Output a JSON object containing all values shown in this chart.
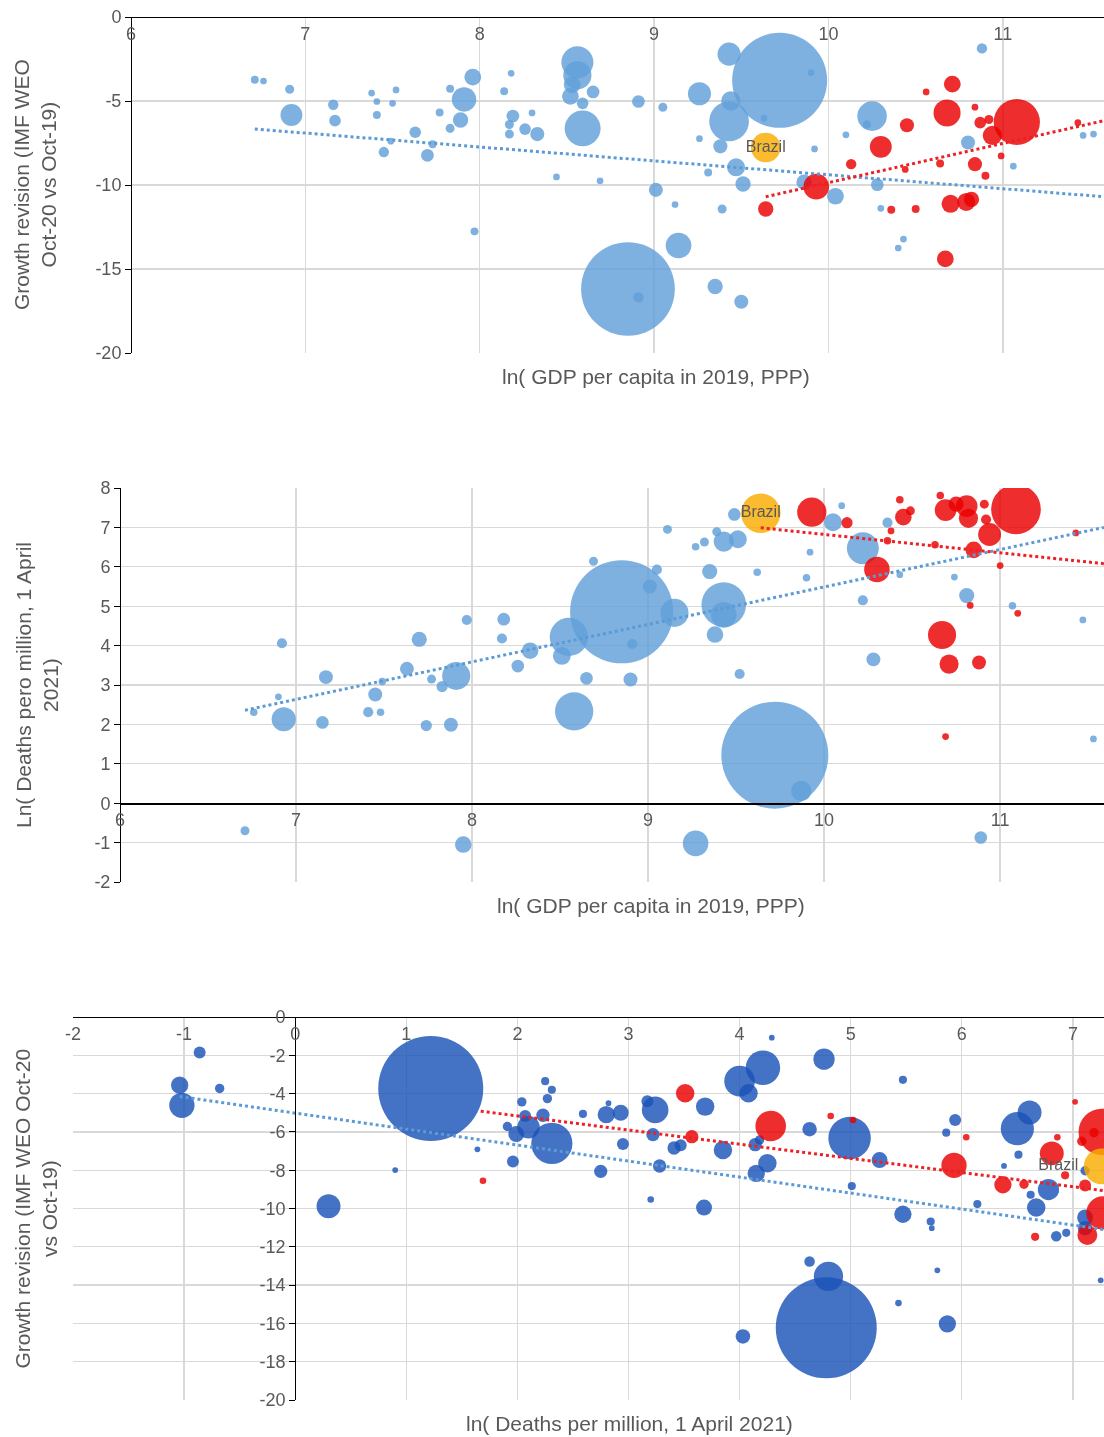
{
  "chart_data": [
    {
      "type": "bubble",
      "xlabel": "ln( GDP per capita in 2019, PPP)",
      "ylabel": "Growth revision (IMF WEO Oct-20 vs Oct-19)",
      "xlim": [
        6,
        11.58
      ],
      "ylim": [
        -20,
        0
      ],
      "xticks": [
        6,
        7,
        8,
        9,
        10,
        11
      ],
      "yticks": [
        0,
        -5,
        -10,
        -15,
        -20
      ],
      "grid": true,
      "marker": "circle",
      "series": [
        {
          "color": "#7eb1e0",
          "x": [
            8.85,
            9.72,
            9.43,
            8.59,
            8.56,
            10.25,
            6.71,
            6.76,
            6.91,
            6.92,
            7.16,
            7.17,
            7.38,
            7.41,
            7.5,
            7.41,
            7.45,
            7.49,
            7.52,
            7.63,
            7.7,
            7.73,
            7.77,
            7.83,
            7.83,
            7.91,
            7.89,
            7.96,
            7.97,
            8.14,
            8.18,
            8.19,
            8.17,
            8.17,
            8.26,
            8.3,
            8.33,
            8.44,
            8.56,
            8.53,
            8.52,
            8.59,
            8.65,
            8.69,
            8.91,
            9.05,
            9.01,
            9.12,
            9.14,
            8.91,
            9.26,
            9.43,
            9.44,
            9.26,
            9.38,
            9.47,
            9.31,
            9.51,
            9.39,
            9.35,
            9.5,
            9.86,
            10.04,
            10.28,
            10.22,
            10.1,
            10.8,
            10.88,
            11.06,
            9.63,
            9.9,
            9.92,
            10.3,
            10.43,
            10.4,
            11.46,
            11.52
          ],
          "values": [
            -16.19,
            -3.77,
            -6.21,
            -6.63,
            -2.7,
            -5.9,
            -3.73,
            -3.81,
            -4.3,
            -5.83,
            -5.22,
            -6.17,
            -4.53,
            -5.03,
            -5.14,
            -5.83,
            -8.04,
            -7.39,
            -4.34,
            -6.86,
            -8.23,
            -7.58,
            -5.68,
            -4.27,
            -6.63,
            -4.91,
            -6.13,
            -3.58,
            -12.76,
            -4.42,
            -3.35,
            -5.9,
            -6.4,
            -6.97,
            -6.67,
            -5.71,
            -6.97,
            -9.52,
            -3.47,
            -4.04,
            -4.72,
            -5.14,
            -4.46,
            -9.75,
            -5.03,
            -5.37,
            -10.29,
            -11.16,
            -13.6,
            -16.69,
            -4.57,
            -2.21,
            -4.99,
            -7.24,
            -7.7,
            -8.95,
            -9.26,
            -9.94,
            -11.43,
            -16.04,
            -16.95,
            -9.83,
            -10.67,
            -9.98,
            -6.4,
            -7.01,
            -7.47,
            -1.87,
            -8.88,
            -6.02,
            -3.31,
            -7.85,
            -11.39,
            -13.22,
            -13.75,
            -7.05,
            -6.97
          ],
          "sizes": [
            0.973,
            1,
            0.175,
            0.143,
            0.114,
            0.097,
            0.007,
            0.005,
            0.009,
            0.053,
            0.012,
            0.015,
            0.005,
            0.005,
            0.005,
            0.007,
            0.012,
            0.005,
            0.005,
            0.015,
            0.018,
            0.007,
            0.007,
            0.007,
            0.009,
            0.066,
            0.026,
            0.031,
            0.007,
            0.007,
            0.005,
            0.018,
            0.009,
            0.009,
            0.015,
            0.005,
            0.022,
            0.005,
            0.088,
            0.031,
            0.031,
            0.015,
            0.018,
            0.005,
            0.018,
            0.009,
            0.022,
            0.005,
            0.073,
            0.012,
            0.059,
            0.059,
            0.041,
            0.005,
            0.022,
            0.036,
            0.007,
            0.026,
            0.009,
            0.026,
            0.022,
            0.026,
            0.031,
            0.018,
            0.007,
            0.005,
            0.022,
            0.012,
            0.005,
            0.005,
            0.005,
            0.005,
            0.005,
            0.005,
            0.005,
            0.005,
            0.005
          ]
        },
        {
          "color": "#ee2024",
          "x": [
            11.08,
            9.64,
            9.93,
            10.13,
            10.3,
            10.45,
            10.36,
            10.5,
            10.68,
            10.71,
            10.64,
            10.67,
            10.7,
            10.79,
            10.82,
            10.84,
            10.87,
            10.92,
            10.94,
            10.9,
            10.99,
            10.84,
            10.44,
            10.56,
            11.43
          ],
          "values": [
            -6.25,
            -11.43,
            -10.1,
            -8.76,
            -7.73,
            -6.44,
            -11.47,
            -11.43,
            -5.71,
            -4.0,
            -8.72,
            -14.4,
            -11.12,
            -11.01,
            -10.86,
            -8.76,
            -6.29,
            -6.1,
            -7.05,
            -9.45,
            -8.27,
            -5.37,
            -9.07,
            -4.46,
            -6.29
          ],
          "sizes": [
            0.237,
            0.026,
            0.073,
            0.012,
            0.053,
            0.022,
            0.007,
            0.007,
            0.081,
            0.031,
            0.007,
            0.031,
            0.036,
            0.036,
            0.026,
            0.022,
            0.015,
            0.009,
            0.041,
            0.007,
            0.005,
            0.005,
            0.005,
            0.005,
            0.005
          ]
        },
        {
          "name": "Brazil",
          "color": "#fbbb10",
          "x": [
            9.64
          ],
          "values": [
            -7.77
          ],
          "sizes": [
            0.097
          ]
        },
        {
          "type": "line",
          "color": "#5b9bd5",
          "line_style": "dotted",
          "marker": "none",
          "x": [
            6.71,
            11.58
          ],
          "values": [
            -6.67,
            -10.7
          ]
        },
        {
          "type": "line",
          "color": "#ee2024",
          "line_style": "dotted",
          "marker": "none",
          "x": [
            9.64,
            11.58
          ],
          "values": [
            -10.7,
            -6.17
          ]
        }
      ]
    },
    {
      "type": "bubble",
      "xlabel": "ln( GDP per capita in 2019, PPP)",
      "ylabel": "Ln( Deaths pero million, 1 April 2021)",
      "xlim": [
        6,
        11.59
      ],
      "ylim": [
        -2,
        8
      ],
      "xticks": [
        6,
        7,
        8,
        9,
        10,
        11
      ],
      "yticks": [
        -2,
        -1,
        0,
        1,
        2,
        3,
        4,
        5,
        6,
        7,
        8
      ],
      "grid": true,
      "marker": "circle",
      "series": [
        {
          "color": "#7eb1e0",
          "x": [
            8.85,
            9.72,
            9.43,
            8.55,
            8.58,
            10.22,
            6.76,
            6.9,
            6.93,
            6.92,
            7.15,
            7.17,
            7.41,
            7.45,
            7.48,
            7.49,
            7.63,
            7.7,
            7.74,
            7.77,
            7.83,
            7.88,
            7.91,
            7.95,
            7.97,
            8.18,
            8.17,
            8.26,
            8.33,
            8.51,
            8.65,
            8.69,
            8.9,
            8.91,
            9.01,
            9.05,
            9.11,
            9.15,
            9.27,
            9.27,
            9.32,
            9.35,
            9.38,
            9.39,
            9.43,
            9.49,
            9.51,
            9.43,
            9.52,
            9.62,
            9.87,
            9.9,
            9.92,
            10.05,
            10.1,
            10.22,
            10.28,
            10.36,
            10.43,
            10.81,
            10.89,
            11.07,
            11.47,
            11.53,
            6.71,
            10.74
          ],
          "values": [
            4.86,
            1.22,
            5.04,
            4.22,
            2.33,
            6.47,
            2.31,
            2.7,
            2.13,
            4.06,
            2.05,
            3.2,
            2.31,
            2.76,
            2.31,
            3.09,
            3.41,
            4.16,
            1.97,
            3.15,
            2.96,
            1.99,
            3.23,
            -1.05,
            4.65,
            4.67,
            4.18,
            3.48,
            3.87,
            3.74,
            3.17,
            6.14,
            3.14,
            4.04,
            5.5,
            5.93,
            6.95,
            4.83,
            -1.02,
            6.51,
            6.63,
            5.88,
            4.28,
            6.89,
            6.64,
            7.33,
            6.7,
            4.78,
            3.28,
            5.86,
            0.31,
            5.72,
            6.37,
            7.13,
            7.55,
            5.15,
            3.65,
            7.12,
            5.8,
            5.27,
            -0.87,
            5.01,
            4.65,
            1.63,
            -0.7,
            5.74
          ],
          "sizes": [
            0.93,
            1,
            0.174,
            0.128,
            0.128,
            0.089,
            0.005,
            0.004,
            0.051,
            0.009,
            0.014,
            0.017,
            0.009,
            0.017,
            0.005,
            0.005,
            0.017,
            0.02,
            0.011,
            0.007,
            0.011,
            0.017,
            0.069,
            0.024,
            0.009,
            0.014,
            0.009,
            0.014,
            0.024,
            0.028,
            0.014,
            0.007,
            0.017,
            0.009,
            0.017,
            0.009,
            0.007,
            0.069,
            0.057,
            0.005,
            0.007,
            0.02,
            0.024,
            0.007,
            0.036,
            0.014,
            0.028,
            0.057,
            0.009,
            0.005,
            0.036,
            0.005,
            0.004,
            0.028,
            0.004,
            0.009,
            0.017,
            0.009,
            0.004,
            0.02,
            0.014,
            0.005,
            0.004,
            0.004,
            0.007,
            0.004
          ]
        },
        {
          "color": "#ee2024",
          "x": [
            11.09,
            9.93,
            10.13,
            10.3,
            10.36,
            10.45,
            10.43,
            10.49,
            10.63,
            10.66,
            10.69,
            10.75,
            10.81,
            10.82,
            10.85,
            10.94,
            10.92,
            10.91,
            10.67,
            10.71,
            10.88,
            10.69,
            11.0,
            10.83,
            11.1,
            11.43,
            10.38
          ],
          "values": [
            7.46,
            7.39,
            7.12,
            5.93,
            6.66,
            7.26,
            7.7,
            7.42,
            6.56,
            7.81,
            7.44,
            7.59,
            7.54,
            7.23,
            6.43,
            6.82,
            7.2,
            7.59,
            4.27,
            3.53,
            3.57,
            1.69,
            6.03,
            5.02,
            4.82,
            6.86,
            6.91
          ],
          "sizes": [
            0.216,
            0.075,
            0.011,
            0.057,
            0.005,
            0.024,
            0.005,
            0.007,
            0.005,
            0.005,
            0.041,
            0.02,
            0.041,
            0.032,
            0.024,
            0.046,
            0.009,
            0.007,
            0.069,
            0.032,
            0.017,
            0.004,
            0.004,
            0.004,
            0.004,
            0.004,
            0.004
          ]
        },
        {
          "name": "Brazil",
          "color": "#fbbb10",
          "x": [
            9.64
          ],
          "values": [
            7.36
          ],
          "sizes": [
            0.136
          ]
        },
        {
          "type": "line",
          "color": "#5b9bd5",
          "line_style": "dotted",
          "marker": "none",
          "x": [
            6.71,
            11.59
          ],
          "values": [
            2.36,
            7.0
          ]
        },
        {
          "type": "line",
          "color": "#ee2024",
          "line_style": "dotted",
          "marker": "none",
          "x": [
            9.64,
            11.59
          ],
          "values": [
            6.99,
            6.08
          ]
        }
      ]
    },
    {
      "type": "bubble",
      "xlabel": "ln( Deaths per million, 1 April 2021)",
      "ylabel": "Growth revision (IMF WEO Oct-20 vs Oct-19)",
      "xlim": [
        -2,
        7.28
      ],
      "ylim": [
        -20,
        0
      ],
      "xticks": [
        -2,
        -1,
        0,
        1,
        2,
        3,
        4,
        5,
        6,
        7
      ],
      "yticks": [
        0,
        -2,
        -4,
        -6,
        -8,
        -10,
        -12,
        -14,
        -16,
        -18,
        -20
      ],
      "grid": true,
      "marker": "circle",
      "series": [
        {
          "color": "#4472c4",
          "x": [
            1.22,
            4.78,
            4.99,
            2.31,
            4.21,
            6.5,
            4.0,
            -0.86,
            -1.04,
            -1.02,
            -0.68,
            0.3,
            0.9,
            1.64,
            1.91,
            1.96,
            1.99,
            2.04,
            2.07,
            2.1,
            2.23,
            2.25,
            2.27,
            2.31,
            2.59,
            2.75,
            2.8,
            2.93,
            2.95,
            2.82,
            3.17,
            3.2,
            3.22,
            3.24,
            3.28,
            3.41,
            3.47,
            3.69,
            3.68,
            3.85,
            4.08,
            4.14,
            4.15,
            4.25,
            4.18,
            4.03,
            4.29,
            4.63,
            4.76,
            4.63,
            4.8,
            5.01,
            5.26,
            5.47,
            5.47,
            5.43,
            5.72,
            5.73,
            5.78,
            5.87,
            5.94,
            5.86,
            6.14,
            6.61,
            6.51,
            6.67,
            6.78,
            6.62,
            6.85,
            6.94,
            7.11,
            7.11,
            7.25,
            6.38,
            7.11
          ],
          "values": [
            -3.73,
            -16.23,
            -6.32,
            -6.6,
            -2.65,
            -5.83,
            -3.35,
            -1.85,
            -3.56,
            -4.61,
            -3.73,
            -9.88,
            -7.99,
            -6.91,
            -5.72,
            -7.54,
            -6.11,
            -4.43,
            -5.17,
            -5.76,
            -5.13,
            -3.35,
            -4.26,
            -3.8,
            -5.06,
            -8.06,
            -5.1,
            -5.0,
            -6.63,
            -4.5,
            -4.4,
            -9.53,
            -6.14,
            -4.85,
            -7.78,
            -6.84,
            -6.7,
            -4.68,
            -9.95,
            -6.95,
            -3.98,
            -6.67,
            -8.17,
            -7.64,
            -6.42,
            -16.68,
            -1.08,
            -5.86,
            -2.2,
            -12.77,
            -13.54,
            -8.83,
            -7.47,
            -10.3,
            -3.28,
            -14.94,
            -10.68,
            -11.03,
            -13.23,
            -16.02,
            -5.38,
            -6.04,
            -9.77,
            -4.99,
            -7.19,
            -9.95,
            -9.01,
            -9.28,
            -11.45,
            -11.27,
            -11.03,
            -8.03,
            -13.75,
            -7.78,
            -10.47
          ],
          "sizes": [
            1,
            0.925,
            0.164,
            0.154,
            0.108,
            0.1,
            0.085,
            0.013,
            0.027,
            0.058,
            0.008,
            0.052,
            0.003,
            0.003,
            0.008,
            0.013,
            0.023,
            0.008,
            0.013,
            0.046,
            0.016,
            0.006,
            0.008,
            0.006,
            0.006,
            0.016,
            0.027,
            0.023,
            0.013,
            0.003,
            0.013,
            0.004,
            0.016,
            0.064,
            0.016,
            0.016,
            0.013,
            0.031,
            0.023,
            0.031,
            0.031,
            0.016,
            0.027,
            0.031,
            0.008,
            0.019,
            0.003,
            0.019,
            0.041,
            0.01,
            0.078,
            0.006,
            0.023,
            0.027,
            0.006,
            0.004,
            0.006,
            0.003,
            0.003,
            0.027,
            0.013,
            0.006,
            0.006,
            0.052,
            0.006,
            0.031,
            0.041,
            0.006,
            0.01,
            0.006,
            0.019,
            0.008,
            0.003,
            0.003,
            0.023
          ]
        },
        {
          "color": "#ee2024",
          "x": [
            7.26,
            1.69,
            3.51,
            3.57,
            4.28,
            4.82,
            5.02,
            5.93,
            6.04,
            6.37,
            6.56,
            6.66,
            6.81,
            6.86,
            6.93,
            7.08,
            7.11,
            7.13,
            7.27,
            7.19,
            7.02
          ],
          "values": [
            -6.0,
            -8.55,
            -3.98,
            -6.25,
            -5.69,
            -5.17,
            -5.38,
            -7.75,
            -6.28,
            -8.76,
            -8.73,
            -11.48,
            -7.12,
            -6.28,
            -8.27,
            -6.49,
            -8.8,
            -11.38,
            -10.23,
            -6.04,
            -4.43
          ],
          "sizes": [
            0.196,
            0.004,
            0.031,
            0.016,
            0.085,
            0.004,
            0.004,
            0.058,
            0.004,
            0.027,
            0.008,
            0.006,
            0.052,
            0.004,
            0.006,
            0.008,
            0.013,
            0.036,
            0.1,
            0.008,
            0.003
          ]
        },
        {
          "name": "Brazil",
          "color": "#fbbb10",
          "x": [
            7.26
          ],
          "values": [
            -7.8
          ],
          "sizes": [
            0.117
          ]
        },
        {
          "type": "line",
          "color": "#5b9bd5",
          "line_style": "dotted",
          "marker": "none",
          "x": [
            -1.04,
            7.28
          ],
          "values": [
            -4.15,
            -11.1
          ]
        },
        {
          "type": "line",
          "color": "#ee2024",
          "line_style": "dotted",
          "marker": "none",
          "x": [
            1.67,
            7.28
          ],
          "values": [
            -4.92,
            -9.07
          ]
        }
      ]
    }
  ]
}
